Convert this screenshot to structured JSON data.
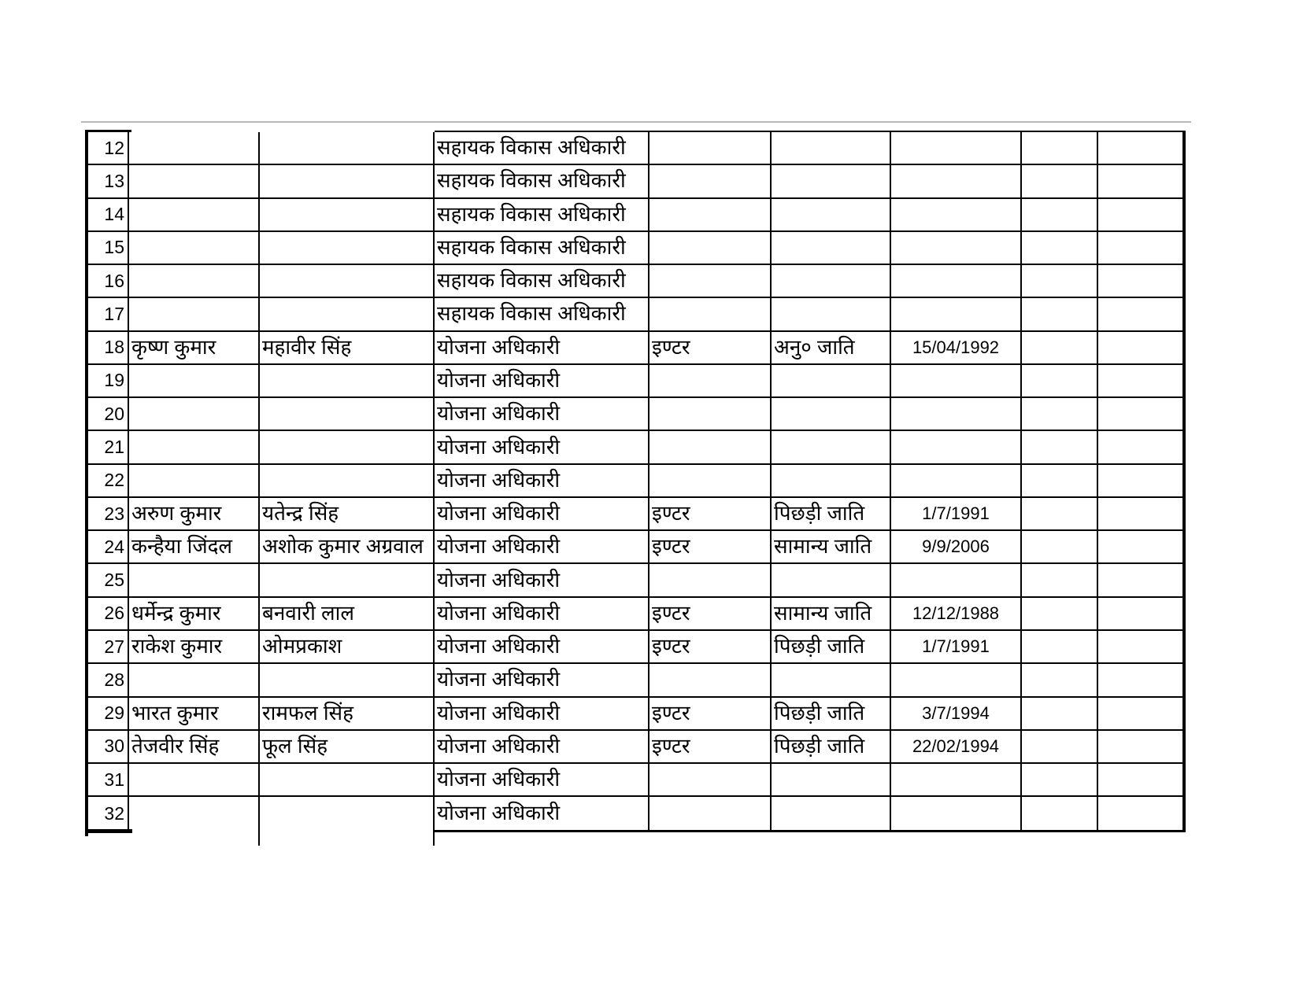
{
  "document": {
    "type": "spreadsheet-table-page",
    "language": "Hindi",
    "visible_row_range": "12-32"
  },
  "colors": {
    "page_bg": "#ffffff",
    "grid_line": "#000000",
    "text": "#000000",
    "page_break_shadow": "#b8b8b8"
  },
  "table": {
    "num_columns": 9,
    "rows": [
      [
        "12",
        "",
        "",
        "सहायक विकास अधिकारी",
        "",
        "",
        "",
        "",
        ""
      ],
      [
        "13",
        "",
        "",
        "सहायक विकास अधिकारी",
        "",
        "",
        "",
        "",
        ""
      ],
      [
        "14",
        "",
        "",
        "सहायक विकास अधिकारी",
        "",
        "",
        "",
        "",
        ""
      ],
      [
        "15",
        "",
        "",
        "सहायक विकास अधिकारी",
        "",
        "",
        "",
        "",
        ""
      ],
      [
        "16",
        "",
        "",
        "सहायक विकास अधिकारी",
        "",
        "",
        "",
        "",
        ""
      ],
      [
        "17",
        "",
        "",
        "सहायक विकास अधिकारी",
        "",
        "",
        "",
        "",
        ""
      ],
      [
        "18",
        "कृष्ण कुमार",
        "महावीर सिंह",
        "योजना अधिकारी",
        "इण्टर",
        "अनु० जाति",
        "15/04/1992",
        "",
        ""
      ],
      [
        "19",
        "",
        "",
        "योजना अधिकारी",
        "",
        "",
        "",
        "",
        ""
      ],
      [
        "20",
        "",
        "",
        "योजना अधिकारी",
        "",
        "",
        "",
        "",
        ""
      ],
      [
        "21",
        "",
        "",
        "योजना अधिकारी",
        "",
        "",
        "",
        "",
        ""
      ],
      [
        "22",
        "",
        "",
        "योजना अधिकारी",
        "",
        "",
        "",
        "",
        ""
      ],
      [
        "23",
        "अरुण कुमार",
        "यतेन्द्र सिंह",
        "योजना अधिकारी",
        "इण्टर",
        "पिछड़ी जाति",
        "1/7/1991",
        "",
        ""
      ],
      [
        "24",
        "कन्हैया जिंदल",
        "अशोक कुमार अग्रवाल",
        "योजना अधिकारी",
        "इण्टर",
        "सामान्य जाति",
        "9/9/2006",
        "",
        ""
      ],
      [
        "25",
        "",
        "",
        "योजना अधिकारी",
        "",
        "",
        "",
        "",
        ""
      ],
      [
        "26",
        "धर्मेन्द्र कुमार",
        "बनवारी लाल",
        "योजना अधिकारी",
        "इण्टर",
        "सामान्य जाति",
        "12/12/1988",
        "",
        ""
      ],
      [
        "27",
        "राकेश कुमार",
        "ओमप्रकाश",
        "योजना अधिकारी",
        "इण्टर",
        "पिछड़ी जाति",
        "1/7/1991",
        "",
        ""
      ],
      [
        "28",
        "",
        "",
        "योजना अधिकारी",
        "",
        "",
        "",
        "",
        ""
      ],
      [
        "29",
        "भारत कुमार",
        "रामफल सिंह",
        "योजना अधिकारी",
        "इण्टर",
        "पिछड़ी जाति",
        "3/7/1994",
        "",
        ""
      ],
      [
        "30",
        "तेजवीर सिंह",
        "फूल सिंह",
        "योजना अधिकारी",
        "इण्टर",
        "पिछड़ी जाति",
        "22/02/1994",
        "",
        ""
      ],
      [
        "31",
        "",
        "",
        "योजना अधिकारी",
        "",
        "",
        "",
        "",
        ""
      ],
      [
        "32",
        "",
        "",
        "योजना अधिकारी",
        "",
        "",
        "",
        "",
        ""
      ]
    ]
  }
}
